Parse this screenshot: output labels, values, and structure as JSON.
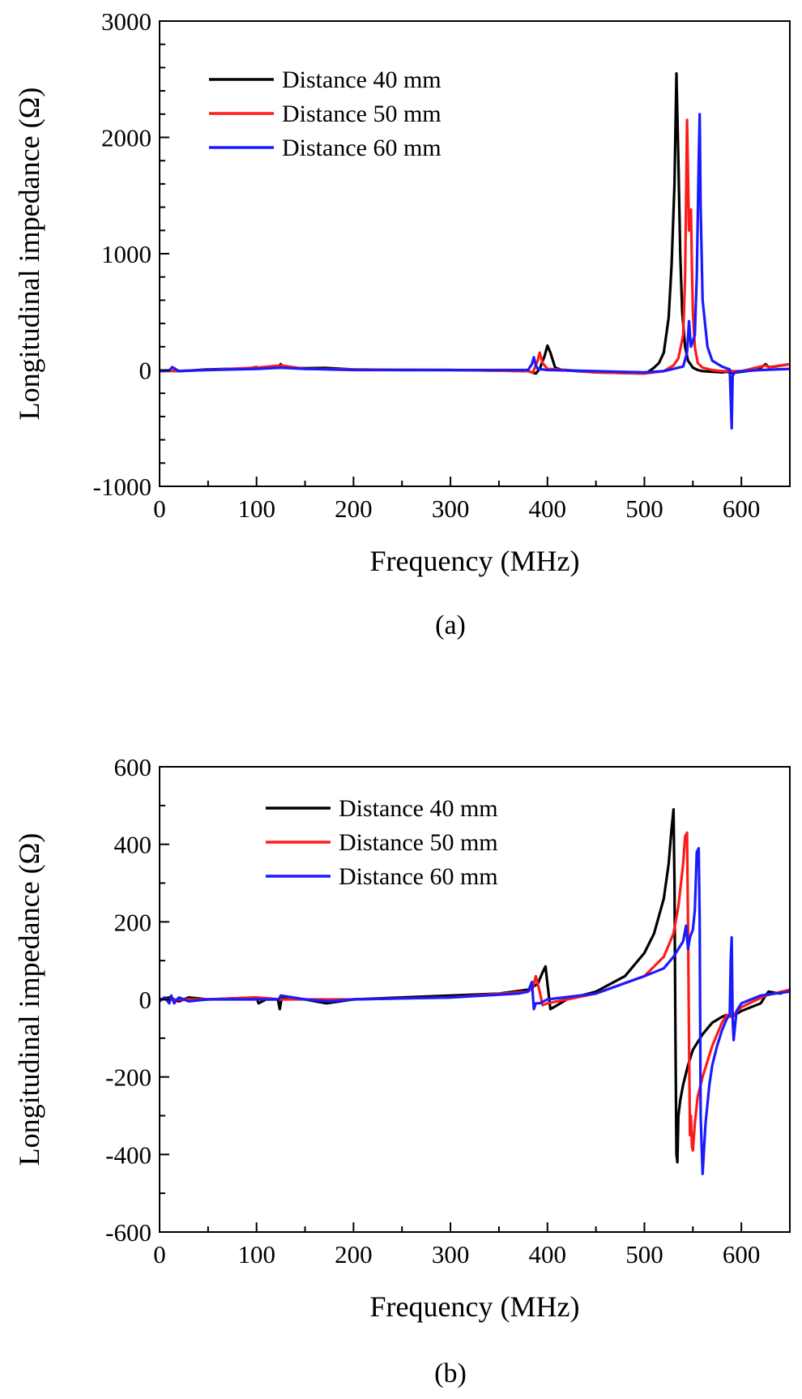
{
  "colors": {
    "black": "#000000",
    "red": "#ff1a1a",
    "blue": "#1a1aff"
  },
  "chart_data": [
    {
      "type": "line",
      "caption": "(a)",
      "xlabel": "Frequency (MHz)",
      "ylabel": "Longitudinal impedance (Ω)",
      "xlim": [
        0,
        650
      ],
      "ylim": [
        -1000,
        3000
      ],
      "xticks": [
        0,
        100,
        200,
        300,
        400,
        500,
        600
      ],
      "yticks": [
        -1000,
        0,
        1000,
        2000,
        3000
      ],
      "legend_position": "top-left",
      "series": [
        {
          "name": "Distance 40 mm",
          "color": "#000000",
          "x": [
            0,
            10,
            20,
            30,
            50,
            70,
            90,
            100,
            102,
            110,
            122,
            125,
            128,
            150,
            170,
            200,
            250,
            300,
            350,
            380,
            388,
            392,
            397,
            400,
            403,
            408,
            415,
            450,
            500,
            505,
            510,
            515,
            520,
            525,
            528,
            531,
            533,
            535,
            537,
            539,
            542,
            545,
            550,
            555,
            560,
            570,
            580,
            585,
            590,
            595,
            610,
            620,
            625,
            628,
            635,
            650
          ],
          "y": [
            -10,
            -5,
            -10,
            -5,
            5,
            10,
            12,
            25,
            10,
            18,
            25,
            50,
            20,
            15,
            18,
            5,
            0,
            0,
            -5,
            -10,
            -30,
            10,
            120,
            210,
            150,
            20,
            0,
            -20,
            -30,
            -10,
            20,
            60,
            150,
            450,
            900,
            1600,
            2550,
            1800,
            1000,
            500,
            200,
            80,
            20,
            0,
            -10,
            -15,
            -20,
            -15,
            -25,
            -20,
            -5,
            20,
            50,
            25,
            30,
            50
          ]
        },
        {
          "name": "Distance 50 mm",
          "color": "#ff1a1a",
          "x": [
            0,
            20,
            50,
            100,
            125,
            150,
            200,
            300,
            380,
            385,
            390,
            392,
            395,
            400,
            420,
            450,
            500,
            520,
            530,
            535,
            540,
            542,
            544,
            546,
            548,
            549,
            550,
            552,
            555,
            560,
            570,
            580,
            600,
            625,
            628,
            650
          ],
          "y": [
            -10,
            -8,
            0,
            20,
            40,
            10,
            5,
            0,
            -10,
            -20,
            80,
            150,
            60,
            10,
            0,
            -20,
            -30,
            -10,
            40,
            100,
            300,
            800,
            2150,
            1200,
            1380,
            900,
            500,
            200,
            60,
            20,
            0,
            -10,
            -10,
            40,
            25,
            50
          ]
        },
        {
          "name": "Distance 60 mm",
          "color": "#1a1aff",
          "x": [
            0,
            10,
            13,
            20,
            50,
            100,
            125,
            150,
            200,
            300,
            380,
            384,
            386,
            388,
            390,
            400,
            450,
            500,
            520,
            540,
            544,
            546,
            548,
            552,
            554,
            556,
            557,
            558,
            560,
            565,
            570,
            580,
            588,
            590,
            591,
            593,
            600,
            620,
            650
          ],
          "y": [
            -10,
            -5,
            25,
            -10,
            0,
            10,
            20,
            10,
            0,
            0,
            0,
            50,
            110,
            40,
            10,
            0,
            -10,
            -20,
            -10,
            30,
            150,
            420,
            200,
            300,
            800,
            1800,
            2200,
            1400,
            600,
            200,
            80,
            30,
            5,
            -500,
            -50,
            -20,
            -10,
            0,
            10
          ]
        }
      ]
    },
    {
      "type": "line",
      "caption": "(b)",
      "xlabel": "Frequency (MHz)",
      "ylabel": "Longitudinal impedance (Ω)",
      "xlim": [
        0,
        650
      ],
      "ylim": [
        -600,
        600
      ],
      "xticks": [
        0,
        100,
        200,
        300,
        400,
        500,
        600
      ],
      "yticks": [
        -600,
        -400,
        -200,
        0,
        200,
        400,
        600
      ],
      "legend_position": "top-left",
      "series": [
        {
          "name": "Distance 40 mm",
          "color": "#000000",
          "x": [
            0,
            10,
            20,
            30,
            50,
            100,
            102,
            110,
            122,
            124,
            126,
            150,
            172,
            200,
            250,
            300,
            350,
            380,
            390,
            395,
            398,
            400,
            403,
            410,
            420,
            450,
            480,
            500,
            510,
            520,
            525,
            528,
            530,
            531,
            532,
            533,
            534,
            535,
            537,
            540,
            545,
            550,
            560,
            570,
            580,
            585,
            590,
            600,
            620,
            625,
            628,
            640,
            650
          ],
          "y": [
            0,
            5,
            -5,
            5,
            0,
            5,
            -10,
            0,
            0,
            -25,
            5,
            0,
            -10,
            0,
            5,
            10,
            15,
            25,
            40,
            70,
            85,
            40,
            -25,
            -15,
            0,
            20,
            60,
            120,
            170,
            260,
            350,
            440,
            490,
            300,
            -100,
            -400,
            -420,
            -300,
            -260,
            -220,
            -170,
            -130,
            -90,
            -60,
            -45,
            -40,
            -45,
            -30,
            -10,
            10,
            20,
            15,
            25
          ]
        },
        {
          "name": "Distance 50 mm",
          "color": "#ff1a1a",
          "x": [
            0,
            50,
            100,
            125,
            150,
            200,
            300,
            380,
            385,
            388,
            392,
            395,
            400,
            420,
            450,
            500,
            520,
            530,
            535,
            540,
            542,
            544,
            545,
            546,
            547,
            548,
            549,
            550,
            552,
            555,
            560,
            570,
            580,
            585,
            590,
            600,
            625,
            650
          ],
          "y": [
            0,
            0,
            5,
            0,
            0,
            0,
            5,
            20,
            30,
            60,
            20,
            -15,
            -10,
            0,
            15,
            60,
            110,
            170,
            240,
            350,
            420,
            430,
            200,
            -100,
            -350,
            -300,
            -380,
            -390,
            -320,
            -250,
            -200,
            -120,
            -60,
            -40,
            -45,
            -20,
            10,
            25
          ]
        },
        {
          "name": "Distance 60 mm",
          "color": "#1a1aff",
          "x": [
            0,
            5,
            10,
            12,
            15,
            20,
            30,
            50,
            100,
            123,
            125,
            150,
            175,
            200,
            300,
            370,
            380,
            384,
            386,
            388,
            392,
            400,
            450,
            500,
            520,
            530,
            540,
            543,
            545,
            547,
            550,
            552,
            554,
            556,
            557,
            558,
            560,
            563,
            567,
            570,
            575,
            580,
            585,
            588,
            589,
            590,
            591,
            592,
            595,
            600,
            610,
            620,
            650
          ],
          "y": [
            -5,
            5,
            -10,
            10,
            -10,
            5,
            -5,
            0,
            0,
            0,
            10,
            0,
            -5,
            0,
            5,
            15,
            20,
            45,
            -25,
            -10,
            -10,
            0,
            15,
            60,
            80,
            110,
            150,
            190,
            130,
            160,
            180,
            230,
            380,
            390,
            200,
            -300,
            -450,
            -320,
            -220,
            -170,
            -120,
            -80,
            -50,
            -40,
            100,
            160,
            -50,
            -105,
            -30,
            -10,
            0,
            10,
            20
          ]
        }
      ]
    }
  ]
}
